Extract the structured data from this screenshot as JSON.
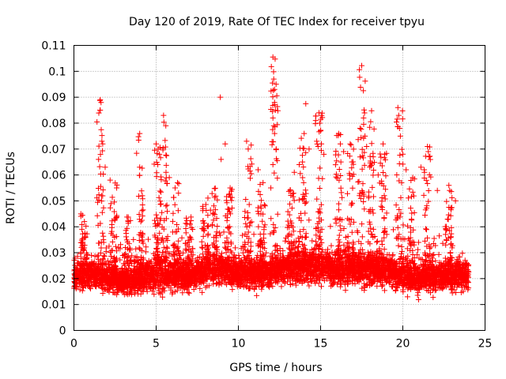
{
  "chart_data": {
    "type": "scatter",
    "title": "Day 120 of 2019, Rate Of TEC Index for receiver tpyu",
    "xlabel": "GPS time / hours",
    "ylabel": "ROTI / TECUs",
    "xlim": [
      0,
      25
    ],
    "ylim": [
      0,
      0.11
    ],
    "x_ticks": [
      0,
      5,
      10,
      15,
      20,
      25
    ],
    "x_tick_labels": [
      "0",
      "5",
      "10",
      "15",
      "20",
      "25"
    ],
    "y_ticks": [
      0,
      0.01,
      0.02,
      0.03,
      0.04,
      0.05,
      0.06,
      0.07,
      0.08,
      0.09,
      0.1,
      0.11
    ],
    "y_tick_labels": [
      "0",
      "0.01",
      "0.02",
      "0.03",
      "0.04",
      "0.05",
      "0.06",
      "0.07",
      "0.08",
      "0.09",
      "0.1",
      "0.11"
    ],
    "grid": true,
    "marker": "+",
    "color": "#ff0000",
    "series": [
      {
        "name": "ROTI",
        "baseline_profile": [
          {
            "x": 0.0,
            "median": 0.021,
            "spread": 0.007
          },
          {
            "x": 1.0,
            "median": 0.022,
            "spread": 0.007
          },
          {
            "x": 2.0,
            "median": 0.021,
            "spread": 0.007
          },
          {
            "x": 3.0,
            "median": 0.019,
            "spread": 0.006
          },
          {
            "x": 4.0,
            "median": 0.02,
            "spread": 0.007
          },
          {
            "x": 5.0,
            "median": 0.022,
            "spread": 0.008
          },
          {
            "x": 6.0,
            "median": 0.022,
            "spread": 0.008
          },
          {
            "x": 7.0,
            "median": 0.021,
            "spread": 0.007
          },
          {
            "x": 8.0,
            "median": 0.023,
            "spread": 0.007
          },
          {
            "x": 9.0,
            "median": 0.024,
            "spread": 0.007
          },
          {
            "x": 10.0,
            "median": 0.022,
            "spread": 0.007
          },
          {
            "x": 11.0,
            "median": 0.022,
            "spread": 0.007
          },
          {
            "x": 12.0,
            "median": 0.023,
            "spread": 0.007
          },
          {
            "x": 13.0,
            "median": 0.024,
            "spread": 0.007
          },
          {
            "x": 14.0,
            "median": 0.025,
            "spread": 0.008
          },
          {
            "x": 15.0,
            "median": 0.025,
            "spread": 0.008
          },
          {
            "x": 16.0,
            "median": 0.024,
            "spread": 0.008
          },
          {
            "x": 17.0,
            "median": 0.024,
            "spread": 0.008
          },
          {
            "x": 18.0,
            "median": 0.024,
            "spread": 0.008
          },
          {
            "x": 19.0,
            "median": 0.023,
            "spread": 0.007
          },
          {
            "x": 20.0,
            "median": 0.021,
            "spread": 0.007
          },
          {
            "x": 21.0,
            "median": 0.02,
            "spread": 0.007
          },
          {
            "x": 22.0,
            "median": 0.021,
            "spread": 0.007
          },
          {
            "x": 23.0,
            "median": 0.021,
            "spread": 0.007
          },
          {
            "x": 24.0,
            "median": 0.021,
            "spread": 0.007
          }
        ],
        "peaks": [
          {
            "x": 1.6,
            "y": 0.089
          },
          {
            "x": 1.65,
            "y": 0.088
          },
          {
            "x": 1.6,
            "y": 0.085
          },
          {
            "x": 1.7,
            "y": 0.073
          },
          {
            "x": 1.75,
            "y": 0.072
          },
          {
            "x": 1.5,
            "y": 0.066
          },
          {
            "x": 1.9,
            "y": 0.063
          },
          {
            "x": 2.2,
            "y": 0.058
          },
          {
            "x": 2.6,
            "y": 0.055
          },
          {
            "x": 4.0,
            "y": 0.076
          },
          {
            "x": 4.0,
            "y": 0.063
          },
          {
            "x": 5.0,
            "y": 0.072
          },
          {
            "x": 5.2,
            "y": 0.068
          },
          {
            "x": 5.45,
            "y": 0.083
          },
          {
            "x": 5.1,
            "y": 0.064
          },
          {
            "x": 5.6,
            "y": 0.061
          },
          {
            "x": 5.8,
            "y": 0.059
          },
          {
            "x": 6.3,
            "y": 0.057
          },
          {
            "x": 8.9,
            "y": 0.09
          },
          {
            "x": 8.95,
            "y": 0.066
          },
          {
            "x": 9.2,
            "y": 0.072
          },
          {
            "x": 9.5,
            "y": 0.055
          },
          {
            "x": 10.5,
            "y": 0.073
          },
          {
            "x": 10.6,
            "y": 0.07
          },
          {
            "x": 11.2,
            "y": 0.062
          },
          {
            "x": 11.5,
            "y": 0.057
          },
          {
            "x": 12.1,
            "y": 0.1055
          },
          {
            "x": 12.15,
            "y": 0.097
          },
          {
            "x": 12.2,
            "y": 0.093
          },
          {
            "x": 12.2,
            "y": 0.088
          },
          {
            "x": 12.25,
            "y": 0.085
          },
          {
            "x": 12.1,
            "y": 0.082
          },
          {
            "x": 12.15,
            "y": 0.079
          },
          {
            "x": 12.2,
            "y": 0.076
          },
          {
            "x": 12.3,
            "y": 0.07
          },
          {
            "x": 12.1,
            "y": 0.064
          },
          {
            "x": 13.4,
            "y": 0.061
          },
          {
            "x": 13.7,
            "y": 0.064
          },
          {
            "x": 13.9,
            "y": 0.065
          },
          {
            "x": 14.0,
            "y": 0.076
          },
          {
            "x": 14.1,
            "y": 0.0875
          },
          {
            "x": 14.3,
            "y": 0.07
          },
          {
            "x": 14.7,
            "y": 0.081
          },
          {
            "x": 14.9,
            "y": 0.084
          },
          {
            "x": 14.95,
            "y": 0.08
          },
          {
            "x": 15.0,
            "y": 0.077
          },
          {
            "x": 15.05,
            "y": 0.072
          },
          {
            "x": 15.2,
            "y": 0.068
          },
          {
            "x": 16.1,
            "y": 0.076
          },
          {
            "x": 16.2,
            "y": 0.072
          },
          {
            "x": 16.4,
            "y": 0.069
          },
          {
            "x": 16.8,
            "y": 0.072
          },
          {
            "x": 16.9,
            "y": 0.065
          },
          {
            "x": 17.4,
            "y": 0.078
          },
          {
            "x": 17.5,
            "y": 0.1022
          },
          {
            "x": 17.6,
            "y": 0.0925
          },
          {
            "x": 17.7,
            "y": 0.075
          },
          {
            "x": 17.8,
            "y": 0.071
          },
          {
            "x": 18.1,
            "y": 0.0848
          },
          {
            "x": 18.2,
            "y": 0.067
          },
          {
            "x": 18.5,
            "y": 0.06
          },
          {
            "x": 18.8,
            "y": 0.072
          },
          {
            "x": 18.9,
            "y": 0.068
          },
          {
            "x": 19.7,
            "y": 0.086
          },
          {
            "x": 19.75,
            "y": 0.083
          },
          {
            "x": 19.8,
            "y": 0.078
          },
          {
            "x": 19.85,
            "y": 0.075
          },
          {
            "x": 20.2,
            "y": 0.062
          },
          {
            "x": 20.6,
            "y": 0.059
          },
          {
            "x": 21.1,
            "y": 0.063
          },
          {
            "x": 21.5,
            "y": 0.071
          },
          {
            "x": 21.55,
            "y": 0.069
          },
          {
            "x": 21.6,
            "y": 0.067
          },
          {
            "x": 22.1,
            "y": 0.054
          },
          {
            "x": 22.8,
            "y": 0.056
          },
          {
            "x": 22.85,
            "y": 0.054
          },
          {
            "x": 23.2,
            "y": 0.05
          }
        ],
        "spike_columns": [
          {
            "x": 0.6,
            "top": 0.045
          },
          {
            "x": 1.6,
            "top": 0.089
          },
          {
            "x": 2.4,
            "top": 0.058
          },
          {
            "x": 3.3,
            "top": 0.045
          },
          {
            "x": 4.0,
            "top": 0.076
          },
          {
            "x": 5.1,
            "top": 0.072
          },
          {
            "x": 5.45,
            "top": 0.083
          },
          {
            "x": 6.2,
            "top": 0.057
          },
          {
            "x": 7.0,
            "top": 0.045
          },
          {
            "x": 8.0,
            "top": 0.052
          },
          {
            "x": 8.5,
            "top": 0.055
          },
          {
            "x": 9.4,
            "top": 0.055
          },
          {
            "x": 10.6,
            "top": 0.073
          },
          {
            "x": 11.4,
            "top": 0.057
          },
          {
            "x": 12.2,
            "top": 0.1055
          },
          {
            "x": 13.2,
            "top": 0.055
          },
          {
            "x": 13.9,
            "top": 0.076
          },
          {
            "x": 14.9,
            "top": 0.084
          },
          {
            "x": 16.1,
            "top": 0.076
          },
          {
            "x": 16.8,
            "top": 0.072
          },
          {
            "x": 17.5,
            "top": 0.1022
          },
          {
            "x": 18.1,
            "top": 0.0848
          },
          {
            "x": 18.8,
            "top": 0.072
          },
          {
            "x": 19.8,
            "top": 0.086
          },
          {
            "x": 20.5,
            "top": 0.06
          },
          {
            "x": 21.5,
            "top": 0.071
          },
          {
            "x": 22.8,
            "top": 0.056
          }
        ]
      }
    ]
  }
}
